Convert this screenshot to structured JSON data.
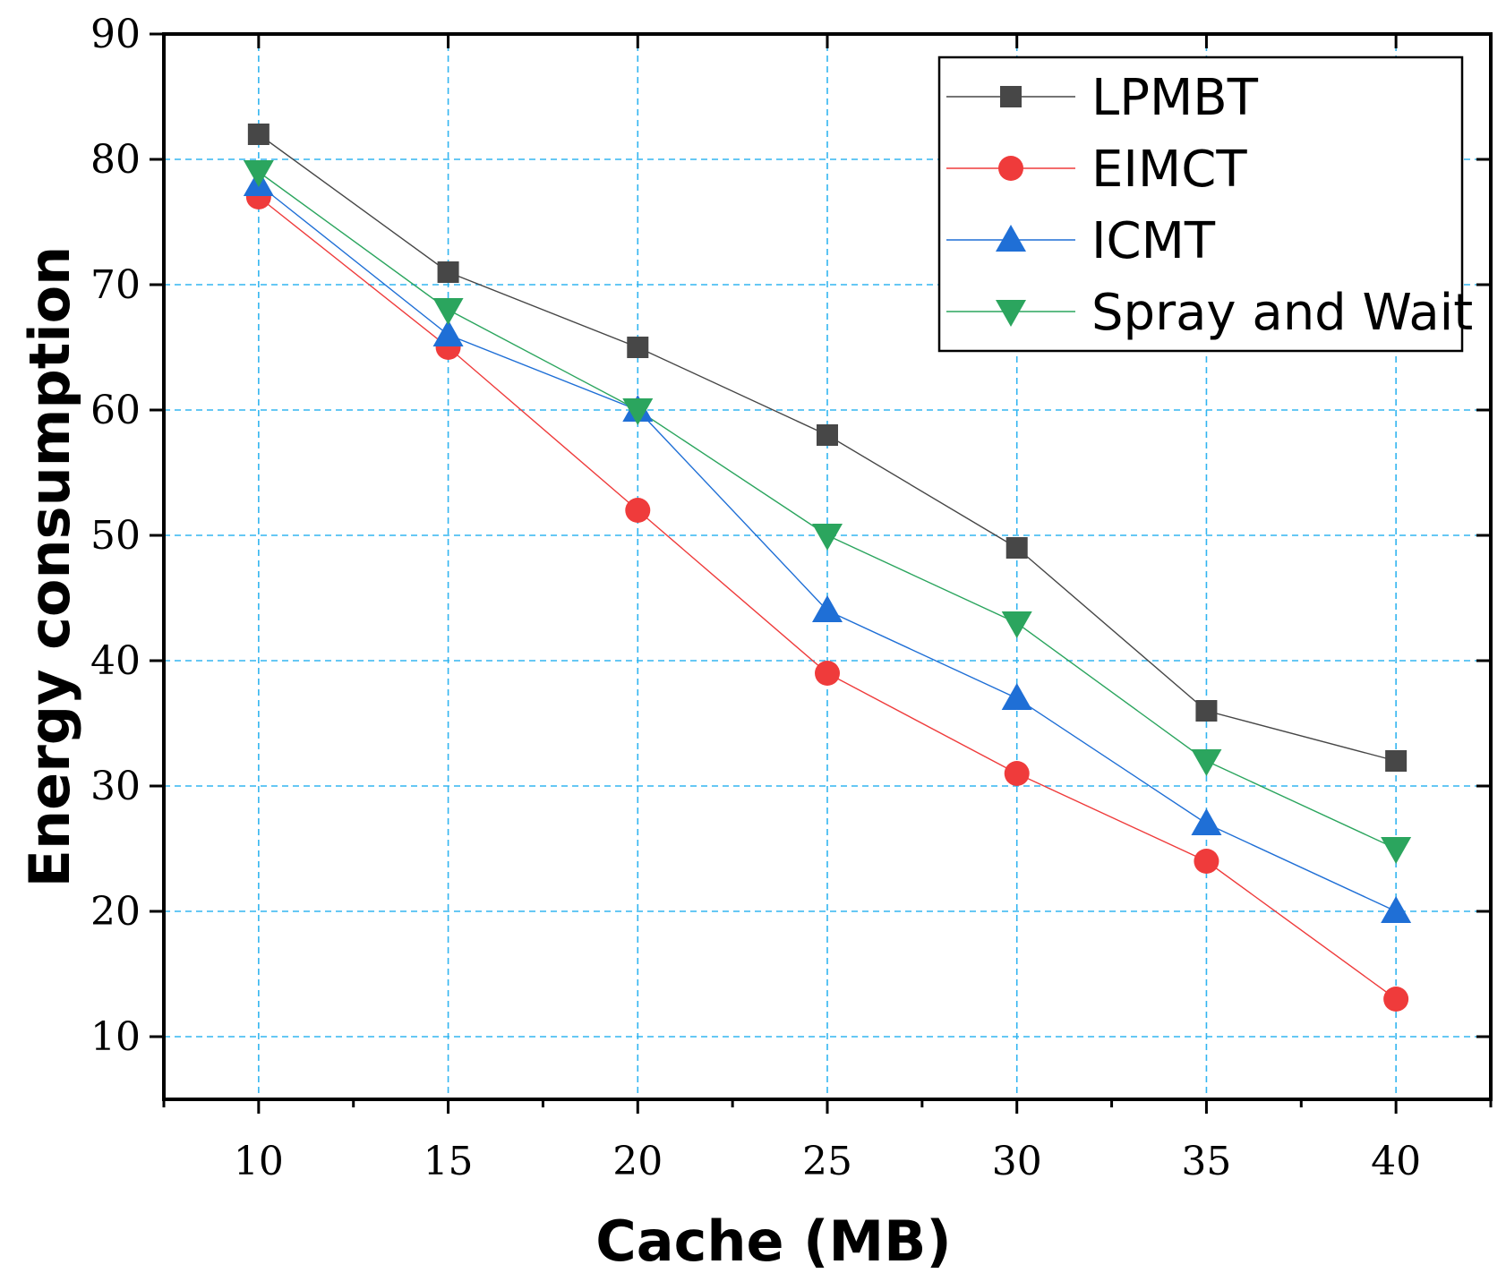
{
  "chart_data": {
    "type": "line",
    "title": "",
    "xlabel": "Cache (MB)",
    "ylabel": "Energy consumption",
    "x": [
      10,
      15,
      20,
      25,
      30,
      35,
      40
    ],
    "x_ticks": [
      "10",
      "15",
      "20",
      "25",
      "30",
      "35",
      "40"
    ],
    "y_ticks": [
      "10",
      "20",
      "30",
      "40",
      "50",
      "60",
      "70",
      "80",
      "90"
    ],
    "xlim": [
      7.5,
      42.5
    ],
    "ylim": [
      5,
      90
    ],
    "grid": true,
    "legend_position": "top-right",
    "series": [
      {
        "name": "LPMBT",
        "marker": "square",
        "color": "#474747",
        "values": [
          82,
          71,
          65,
          58,
          49,
          36,
          32
        ]
      },
      {
        "name": "EIMCT",
        "marker": "circle",
        "color": "#ef3b3b",
        "values": [
          77,
          65,
          52,
          39,
          31,
          24,
          13
        ]
      },
      {
        "name": "ICMT",
        "marker": "triangle-up",
        "color": "#1f6fd6",
        "values": [
          78,
          66,
          60,
          44,
          37,
          27,
          20
        ]
      },
      {
        "name": "Spray and Wait",
        "marker": "triangle-down",
        "color": "#2ba55e",
        "values": [
          79,
          68,
          60,
          50,
          43,
          32,
          25
        ]
      }
    ],
    "colors": {
      "grid": "#33b5f0",
      "axis": "#000000"
    }
  }
}
